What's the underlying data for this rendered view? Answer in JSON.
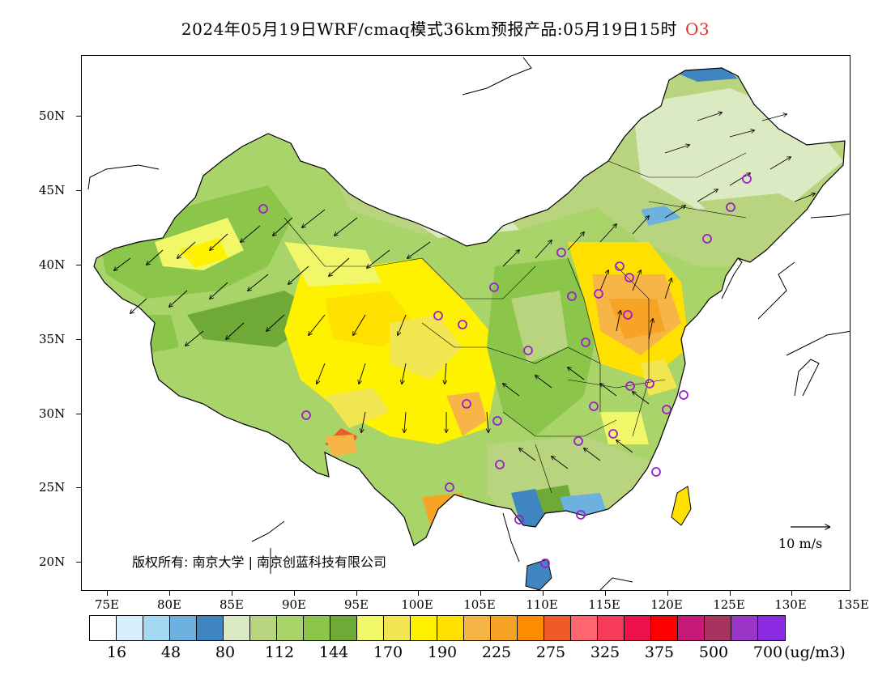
{
  "title": {
    "text": "2024年05月19日WRF/cmaq模式36km预报产品:05月19日15时",
    "pollutant": "O3"
  },
  "axes": {
    "lat_labels": [
      "50N",
      "45N",
      "40N",
      "35N",
      "30N",
      "25N",
      "20N"
    ],
    "lon_labels": [
      "75E",
      "80E",
      "85E",
      "90E",
      "95E",
      "100E",
      "105E",
      "110E",
      "115E",
      "120E",
      "125E",
      "130E",
      "135E"
    ]
  },
  "map": {
    "copyright": "版权所有: 南京大学 | 南京创蓝科技有限公司",
    "wind_reference": "10 m/s",
    "station_marker_color": "#9b1fc9"
  },
  "colorbar": {
    "colors": [
      "#ffffff",
      "#d7eefb",
      "#a5d8f3",
      "#6cb1df",
      "#3f86c1",
      "#dceac4",
      "#b9d47e",
      "#a8d46a",
      "#8bc64a",
      "#6faa36",
      "#f2f76a",
      "#f2e552",
      "#fff200",
      "#ffe000",
      "#f8b547",
      "#f7a326",
      "#ff8c00",
      "#f05a28",
      "#ff6670",
      "#f53a5a",
      "#ee1149",
      "#ff0000",
      "#c8197a",
      "#a83260",
      "#9a35c8",
      "#8a2be2"
    ],
    "labels": [
      "16",
      "48",
      "80",
      "112",
      "144",
      "170",
      "190",
      "225",
      "275",
      "325",
      "375",
      "500",
      "700"
    ],
    "unit": "(ug/m3)"
  }
}
